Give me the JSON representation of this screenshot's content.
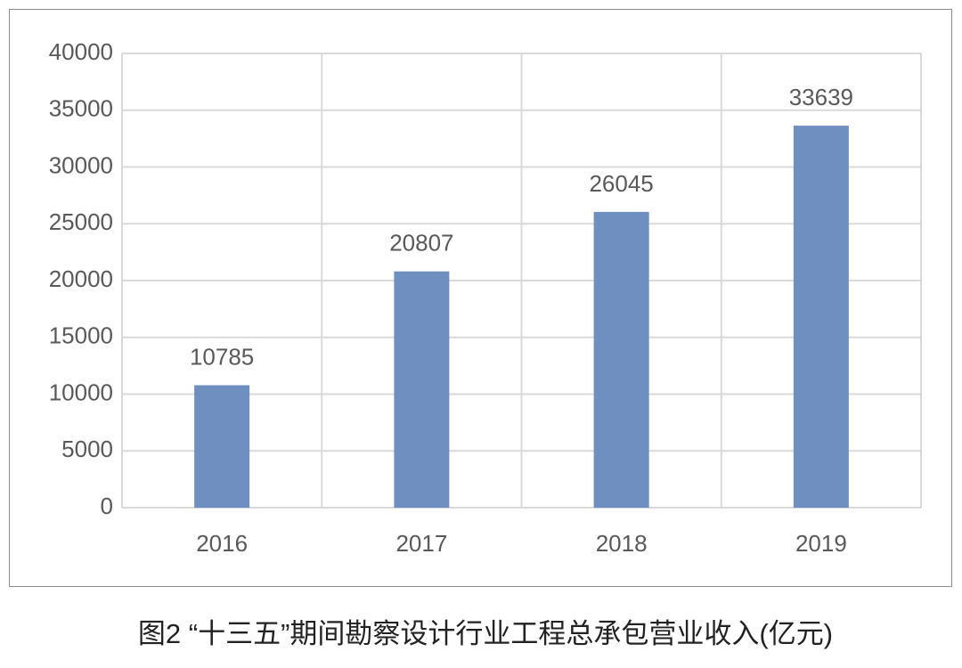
{
  "chart_data": {
    "type": "bar",
    "title": "图2 “十三五”期间勘察设计行业工程总承包营业收入(亿元)",
    "categories": [
      "2016",
      "2017",
      "2018",
      "2019"
    ],
    "values": [
      10785,
      20807,
      26045,
      33639
    ],
    "color": "#6f8fc0",
    "ylim": [
      0,
      40000
    ],
    "yticks": [
      0,
      5000,
      10000,
      15000,
      20000,
      25000,
      30000,
      35000,
      40000
    ],
    "grid": true
  }
}
